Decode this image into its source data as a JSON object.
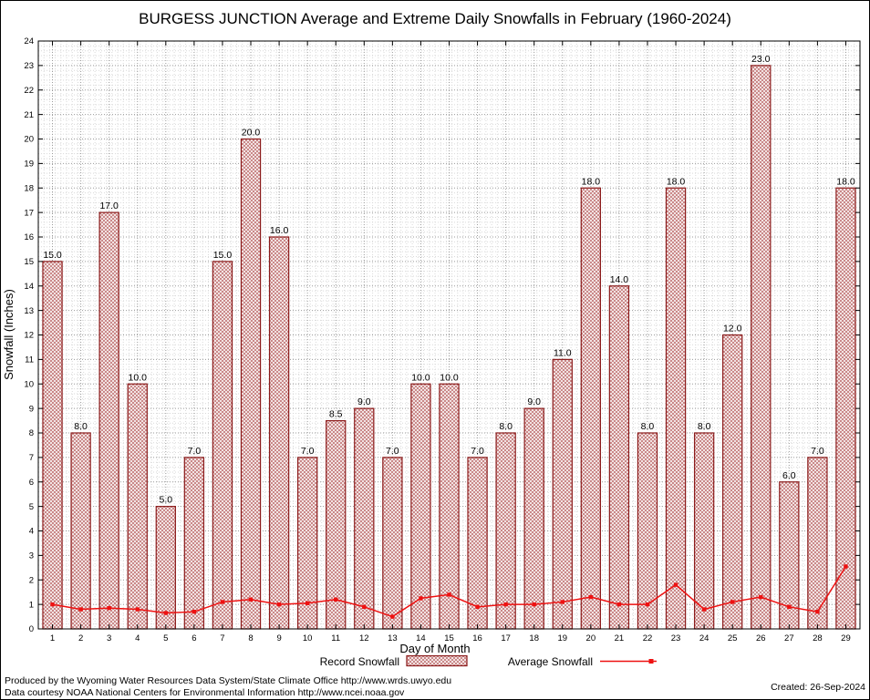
{
  "chart_data": {
    "type": "bar",
    "title": "BURGESS JUNCTION Average and Extreme Daily Snowfalls in February (1960-2024)",
    "xlabel": "Day of Month",
    "ylabel": "Snowfall (Inches)",
    "ylim": [
      0,
      24
    ],
    "grid": true,
    "legend_position": "bottom",
    "categories": [
      1,
      2,
      3,
      4,
      5,
      6,
      7,
      8,
      9,
      10,
      11,
      12,
      13,
      14,
      15,
      16,
      17,
      18,
      19,
      20,
      21,
      22,
      23,
      24,
      25,
      26,
      27,
      28,
      29
    ],
    "series": [
      {
        "name": "Record Snowfall",
        "type": "bar",
        "values": [
          15.0,
          8.0,
          17.0,
          10.0,
          5.0,
          7.0,
          15.0,
          20.0,
          16.0,
          7.0,
          8.5,
          9.0,
          7.0,
          10.0,
          10.0,
          7.0,
          8.0,
          9.0,
          11.0,
          18.0,
          14.0,
          8.0,
          18.0,
          8.0,
          12.0,
          23.0,
          6.0,
          7.0,
          18.0
        ]
      },
      {
        "name": "Average Snowfall",
        "type": "line",
        "values": [
          1.0,
          0.8,
          0.85,
          0.8,
          0.65,
          0.7,
          1.1,
          1.2,
          1.0,
          1.05,
          1.2,
          0.9,
          0.5,
          1.25,
          1.4,
          0.9,
          1.0,
          1.0,
          1.1,
          1.3,
          1.0,
          1.0,
          1.8,
          0.8,
          1.1,
          1.3,
          0.9,
          0.7,
          2.55
        ]
      }
    ],
    "colors": {
      "bar_border": "#8b1a1a",
      "bar_hatch": "#b05050",
      "bar_bg": "#f8efef",
      "avg_line": "#ee1111",
      "grid_major": "#999999",
      "grid_minor": "#d9d9d9"
    }
  },
  "footer": {
    "line1": "Produced by the Wyoming Water Resources Data System/State Climate Office http://www.wrds.uwyo.edu",
    "line2": "Data courtesy NOAA National Centers for Environmental Information http://www.ncei.noaa.gov",
    "created": "Created: 26-Sep-2024"
  }
}
